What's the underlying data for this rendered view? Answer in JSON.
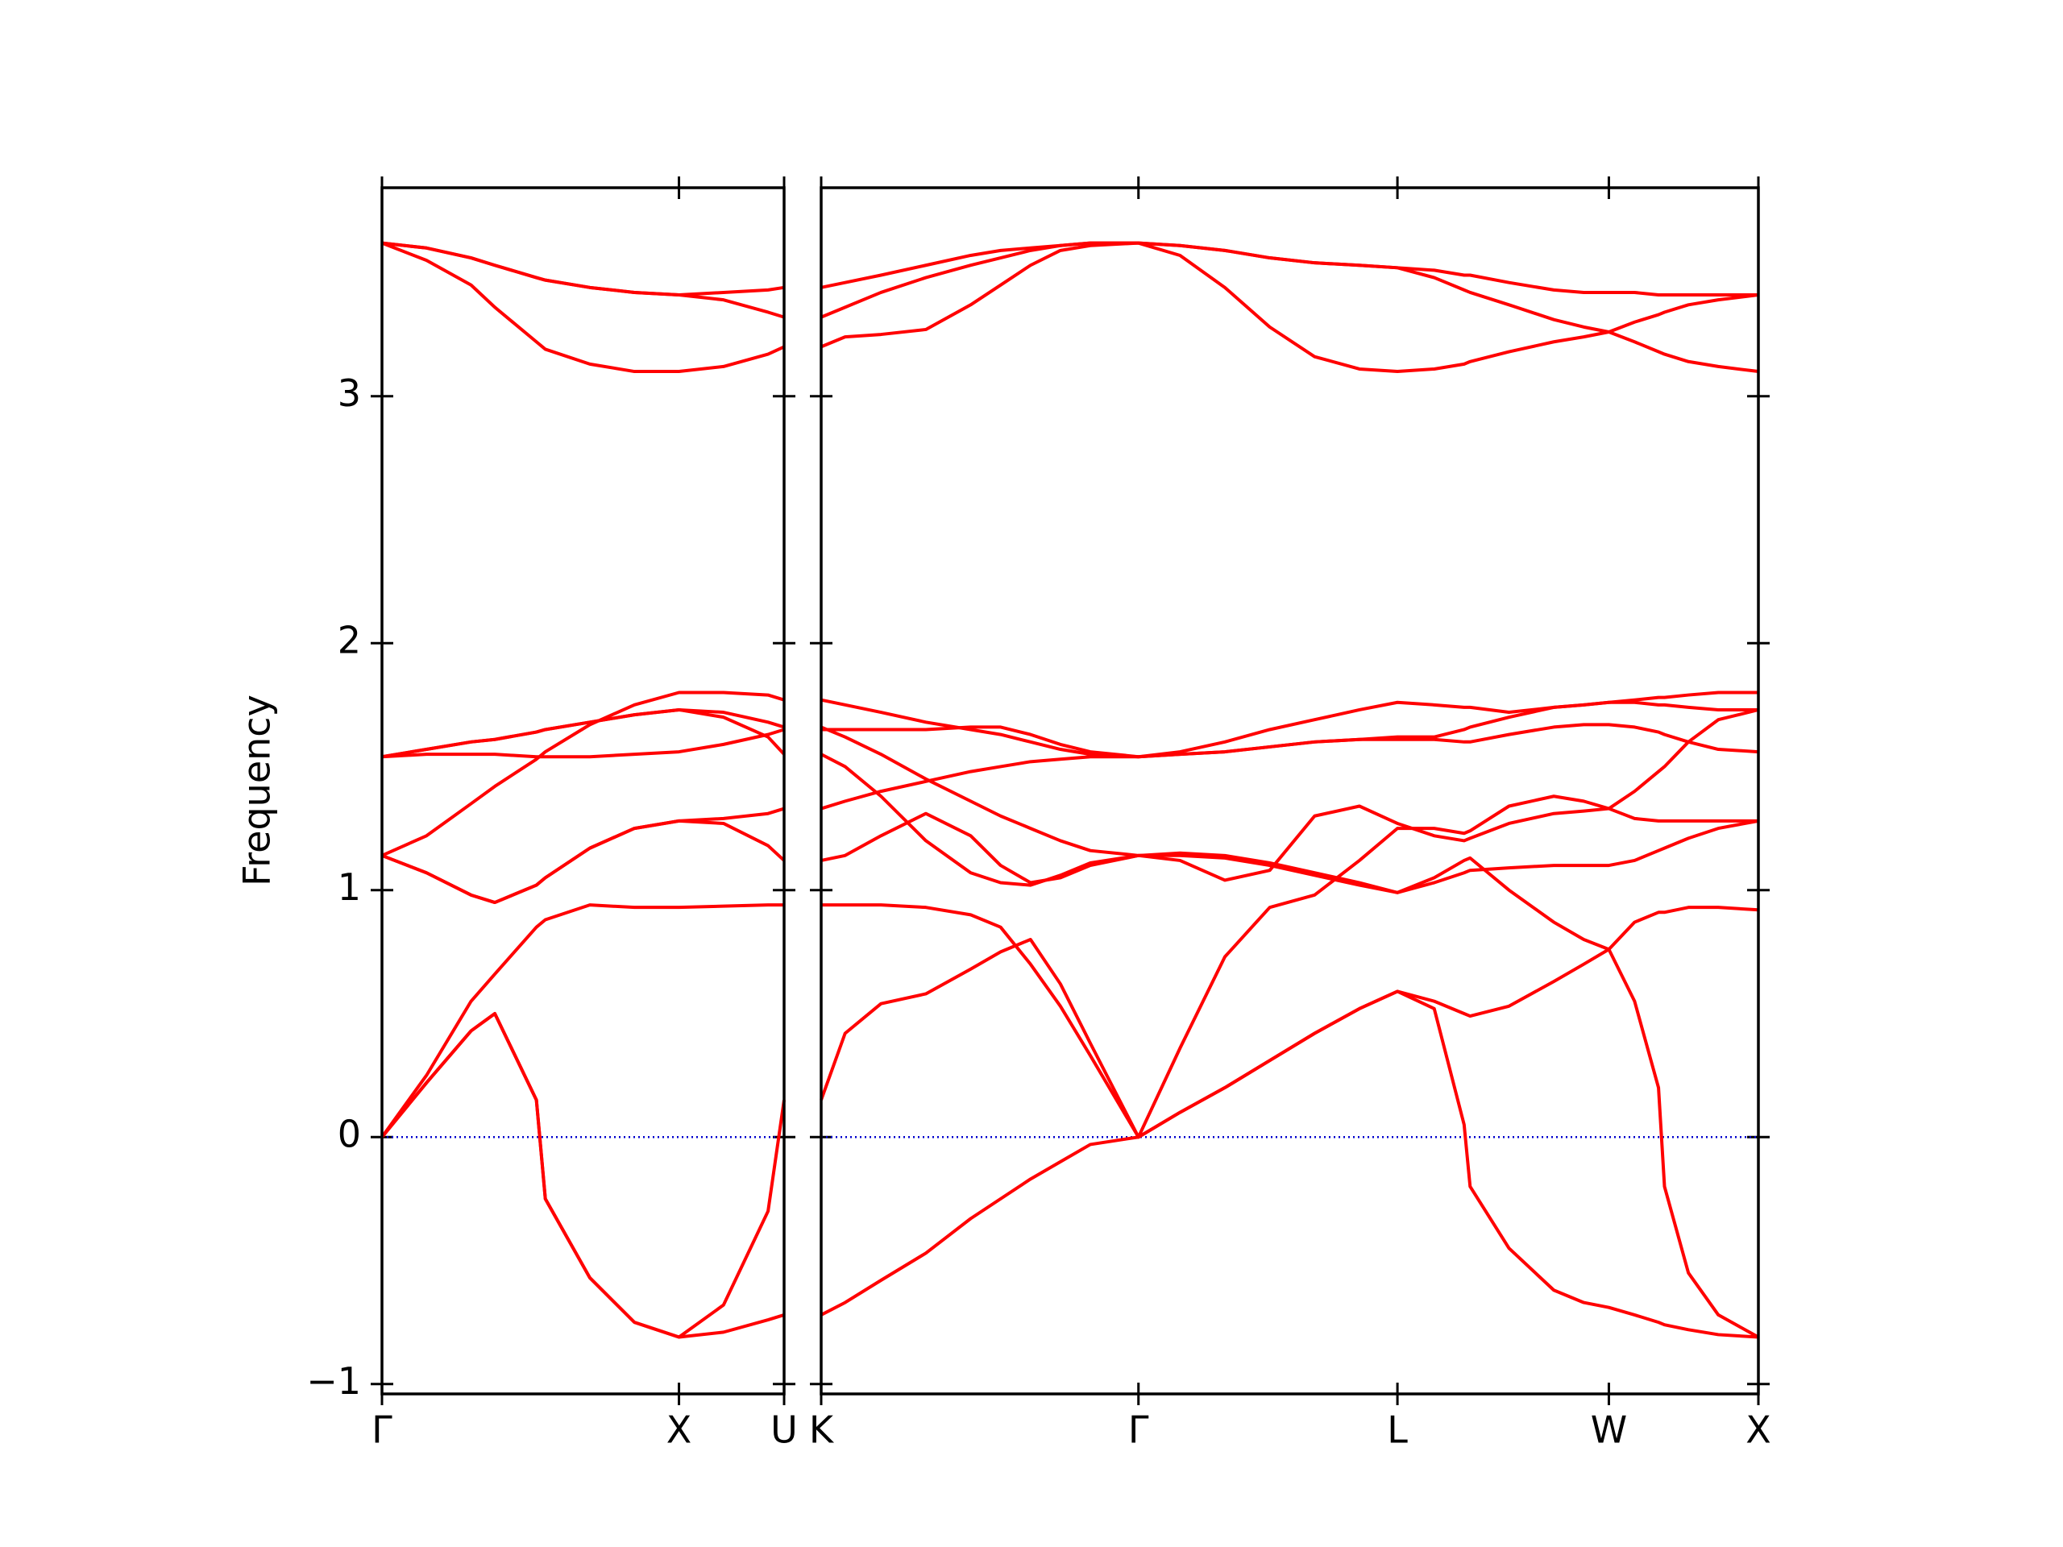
{
  "chart_data": [
    {
      "type": "line",
      "ylabel": "Frequency",
      "color": "#ff0000",
      "x": [
        0,
        0.15,
        0.3,
        0.38,
        0.52,
        0.55,
        0.7,
        0.85,
        1.0,
        1.15,
        1.3,
        1.354
      ],
      "series": [
        {
          "values": [
            0,
            0.22,
            0.43,
            0.5,
            0.15,
            -0.25,
            -0.57,
            -0.75,
            -0.81,
            -0.79,
            -0.74,
            -0.72
          ]
        },
        {
          "values": [
            0,
            0.22,
            0.43,
            0.5,
            0.15,
            -0.25,
            -0.57,
            -0.75,
            -0.81,
            -0.68,
            -0.3,
            0.15
          ]
        },
        {
          "values": [
            0,
            0.25,
            0.55,
            0.66,
            0.85,
            0.88,
            0.94,
            0.93,
            0.93,
            0.935,
            0.94,
            0.94
          ]
        },
        {
          "values": [
            1.14,
            1.07,
            0.98,
            0.95,
            1.02,
            1.05,
            1.17,
            1.25,
            1.28,
            1.27,
            1.18,
            1.12
          ]
        },
        {
          "values": [
            1.14,
            1.07,
            0.98,
            0.95,
            1.02,
            1.05,
            1.17,
            1.25,
            1.28,
            1.29,
            1.31,
            1.33
          ]
        },
        {
          "values": [
            1.14,
            1.22,
            1.35,
            1.42,
            1.53,
            1.56,
            1.67,
            1.75,
            1.8,
            1.8,
            1.79,
            1.77
          ]
        },
        {
          "values": [
            1.54,
            1.55,
            1.55,
            1.55,
            1.54,
            1.54,
            1.54,
            1.55,
            1.56,
            1.59,
            1.63,
            1.65
          ]
        },
        {
          "values": [
            1.54,
            1.57,
            1.6,
            1.61,
            1.64,
            1.65,
            1.68,
            1.71,
            1.73,
            1.7,
            1.62,
            1.55
          ]
        },
        {
          "values": [
            1.54,
            1.57,
            1.6,
            1.61,
            1.64,
            1.65,
            1.68,
            1.71,
            1.73,
            1.72,
            1.68,
            1.66
          ]
        },
        {
          "values": [
            3.62,
            3.55,
            3.45,
            3.36,
            3.22,
            3.19,
            3.13,
            3.1,
            3.1,
            3.12,
            3.17,
            3.2
          ]
        },
        {
          "values": [
            3.62,
            3.6,
            3.56,
            3.53,
            3.48,
            3.47,
            3.44,
            3.42,
            3.41,
            3.39,
            3.34,
            3.32
          ]
        },
        {
          "values": [
            3.62,
            3.6,
            3.56,
            3.53,
            3.48,
            3.47,
            3.44,
            3.42,
            3.41,
            3.42,
            3.43,
            3.44
          ]
        }
      ],
      "xlim": [
        0,
        1.354
      ],
      "xticks": [
        {
          "value": 0,
          "label": "Γ"
        },
        {
          "value": 1.0,
          "label": "X"
        },
        {
          "value": 1.354,
          "label": "U"
        }
      ],
      "ylim": [
        -1.04,
        3.844
      ],
      "yticks": [
        {
          "value": -1,
          "label": "−1"
        },
        0,
        1,
        2,
        3
      ],
      "hlines": [
        {
          "y": 0,
          "color": "#0000cc"
        }
      ]
    },
    {
      "type": "line",
      "color": "#ff0000",
      "x": [
        0,
        0.08,
        0.2,
        0.35,
        0.5,
        0.6,
        0.7,
        0.8,
        0.9,
        1.061,
        1.2,
        1.35,
        1.5,
        1.65,
        1.8,
        1.927,
        2.05,
        2.15,
        2.17,
        2.3,
        2.45,
        2.55,
        2.634,
        2.72,
        2.8,
        2.82,
        2.9,
        3.0,
        3.134
      ],
      "series": [
        {
          "values": [
            -0.72,
            -0.67,
            -0.58,
            -0.47,
            -0.33,
            -0.25,
            -0.17,
            -0.1,
            -0.03,
            0,
            0.1,
            0.2,
            0.31,
            0.42,
            0.52,
            0.59,
            0.55,
            0.5,
            0.49,
            0.53,
            0.63,
            0.7,
            0.76,
            0.87,
            0.91,
            0.91,
            0.93,
            0.93,
            0.92
          ]
        },
        {
          "values": [
            0.15,
            0.42,
            0.54,
            0.58,
            0.68,
            0.75,
            0.8,
            0.62,
            0.38,
            0,
            0.36,
            0.73,
            0.93,
            0.98,
            1.12,
            1.25,
            1.25,
            1.23,
            1.24,
            1.34,
            1.38,
            1.36,
            1.33,
            1.29,
            1.28,
            1.28,
            1.28,
            1.28,
            1.28
          ]
        },
        {
          "values": [
            0.94,
            0.94,
            0.94,
            0.93,
            0.9,
            0.85,
            0.7,
            0.53,
            0.33,
            0,
            0.1,
            0.2,
            0.31,
            0.42,
            0.52,
            0.59,
            0.52,
            0.05,
            -0.2,
            -0.45,
            -0.62,
            -0.67,
            -0.69,
            -0.72,
            -0.75,
            -0.76,
            -0.78,
            -0.8,
            -0.81
          ]
        },
        {
          "values": [
            1.12,
            1.14,
            1.22,
            1.31,
            1.22,
            1.1,
            1.03,
            1.05,
            1.1,
            1.14,
            1.14,
            1.13,
            1.1,
            1.06,
            1.02,
            0.99,
            1.05,
            1.12,
            1.13,
            1.0,
            0.87,
            0.8,
            0.76,
            0.55,
            0.2,
            -0.2,
            -0.55,
            -0.72,
            -0.81
          ]
        },
        {
          "values": [
            1.33,
            1.36,
            1.4,
            1.44,
            1.48,
            1.5,
            1.52,
            1.53,
            1.54,
            1.54,
            1.55,
            1.56,
            1.58,
            1.6,
            1.61,
            1.61,
            1.61,
            1.6,
            1.6,
            1.63,
            1.66,
            1.67,
            1.67,
            1.66,
            1.64,
            1.63,
            1.6,
            1.57,
            1.56
          ]
        },
        {
          "values": [
            1.55,
            1.5,
            1.38,
            1.2,
            1.07,
            1.03,
            1.02,
            1.06,
            1.11,
            1.14,
            1.15,
            1.14,
            1.11,
            1.07,
            1.03,
            0.99,
            1.03,
            1.07,
            1.08,
            1.09,
            1.1,
            1.1,
            1.1,
            1.12,
            1.16,
            1.17,
            1.21,
            1.25,
            1.28
          ]
        },
        {
          "values": [
            1.65,
            1.65,
            1.65,
            1.65,
            1.66,
            1.66,
            1.63,
            1.59,
            1.56,
            1.54,
            1.56,
            1.6,
            1.65,
            1.69,
            1.73,
            1.76,
            1.75,
            1.74,
            1.74,
            1.72,
            1.74,
            1.75,
            1.76,
            1.77,
            1.78,
            1.78,
            1.79,
            1.8,
            1.8
          ]
        },
        {
          "values": [
            1.66,
            1.62,
            1.55,
            1.45,
            1.36,
            1.3,
            1.25,
            1.2,
            1.16,
            1.14,
            1.12,
            1.04,
            1.08,
            1.3,
            1.34,
            1.27,
            1.22,
            1.2,
            1.21,
            1.27,
            1.31,
            1.32,
            1.33,
            1.4,
            1.48,
            1.5,
            1.6,
            1.69,
            1.73
          ]
        },
        {
          "values": [
            1.77,
            1.75,
            1.72,
            1.68,
            1.65,
            1.63,
            1.6,
            1.57,
            1.55,
            1.54,
            1.55,
            1.56,
            1.58,
            1.6,
            1.61,
            1.62,
            1.62,
            1.65,
            1.66,
            1.7,
            1.74,
            1.75,
            1.76,
            1.76,
            1.75,
            1.75,
            1.74,
            1.73,
            1.73
          ]
        },
        {
          "values": [
            3.2,
            3.24,
            3.25,
            3.27,
            3.37,
            3.45,
            3.53,
            3.59,
            3.61,
            3.62,
            3.57,
            3.44,
            3.28,
            3.16,
            3.11,
            3.1,
            3.11,
            3.13,
            3.14,
            3.18,
            3.22,
            3.24,
            3.26,
            3.22,
            3.18,
            3.17,
            3.14,
            3.12,
            3.1
          ]
        },
        {
          "values": [
            3.32,
            3.36,
            3.42,
            3.48,
            3.53,
            3.56,
            3.59,
            3.61,
            3.62,
            3.62,
            3.61,
            3.59,
            3.56,
            3.54,
            3.53,
            3.52,
            3.48,
            3.43,
            3.42,
            3.37,
            3.31,
            3.28,
            3.26,
            3.3,
            3.33,
            3.34,
            3.37,
            3.39,
            3.41
          ]
        },
        {
          "values": [
            3.44,
            3.46,
            3.49,
            3.53,
            3.57,
            3.59,
            3.6,
            3.61,
            3.62,
            3.62,
            3.61,
            3.59,
            3.56,
            3.54,
            3.53,
            3.52,
            3.51,
            3.49,
            3.49,
            3.46,
            3.43,
            3.42,
            3.42,
            3.42,
            3.41,
            3.41,
            3.41,
            3.41,
            3.41
          ]
        }
      ],
      "xlim": [
        0,
        3.134
      ],
      "xticks": [
        {
          "value": 0,
          "label": "K"
        },
        {
          "value": 1.061,
          "label": "Γ"
        },
        {
          "value": 1.927,
          "label": "L"
        },
        {
          "value": 2.634,
          "label": "W"
        },
        {
          "value": 3.134,
          "label": "X"
        }
      ],
      "ylim": [
        -1.04,
        3.844
      ],
      "hlines": [
        {
          "y": 0,
          "color": "#0000cc"
        }
      ]
    }
  ]
}
